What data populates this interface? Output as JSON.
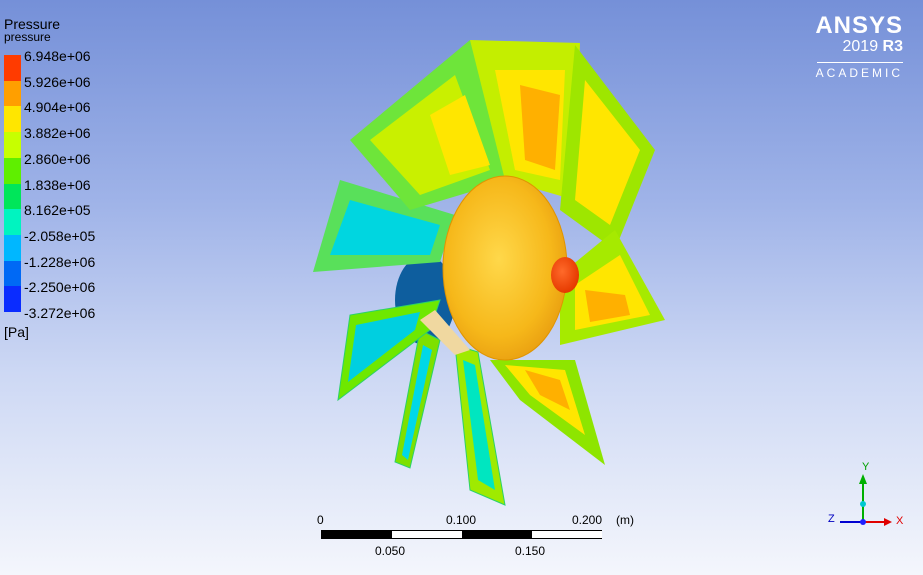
{
  "legend": {
    "title": "Pressure",
    "subtitle": "pressure",
    "unit": "[Pa]",
    "ticks": [
      "6.948e+06",
      "5.926e+06",
      "4.904e+06",
      "3.882e+06",
      "2.860e+06",
      "1.838e+06",
      "8.162e+05",
      "-2.058e+05",
      "-1.228e+06",
      "-2.250e+06",
      "-3.272e+06"
    ],
    "colors": [
      "#ff3b00",
      "#ff9f00",
      "#ffe600",
      "#c7ff00",
      "#5fef00",
      "#00e65a",
      "#00f4c0",
      "#00b7ff",
      "#0069f5",
      "#0a2cff"
    ]
  },
  "logo": {
    "brand": "ANSYS",
    "year": "2019",
    "release": "R3",
    "edition": "ACADEMIC"
  },
  "scale": {
    "top_labels": [
      "0",
      "0.100",
      "0.200",
      "(m)"
    ],
    "bottom_labels": [
      "0.050",
      "0.150"
    ]
  },
  "triad": {
    "x": "X",
    "y": "Y",
    "z": "Z"
  }
}
